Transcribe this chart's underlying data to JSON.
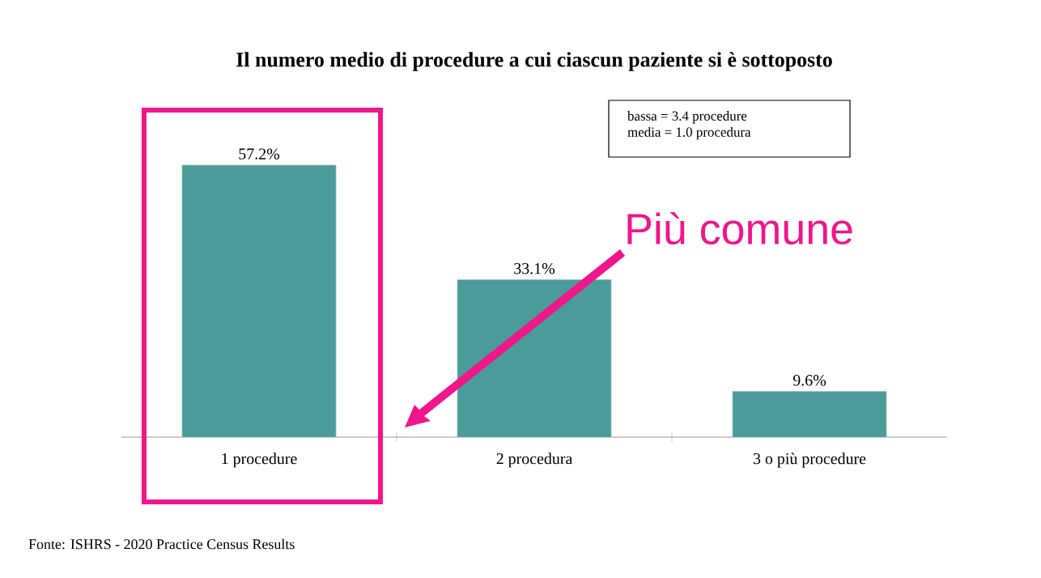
{
  "chart_data": {
    "type": "bar",
    "title": "Il numero medio di procedure a cui ciascun paziente si è sottoposto",
    "categories": [
      "1 procedure",
      "2 procedura",
      "3 o più procedure"
    ],
    "values": [
      57.2,
      33.1,
      9.6
    ],
    "value_labels": [
      "57.2%",
      "33.1%",
      "9.6%"
    ],
    "color": "#4a9b99",
    "tick_labels": "x",
    "annotations": [
      "bassa = 3.4 procedure",
      "media = 1.0 procedura",
      "Più comune",
      "Fonte: ISHRS - 2020 Practice Census Results"
    ]
  }
}
